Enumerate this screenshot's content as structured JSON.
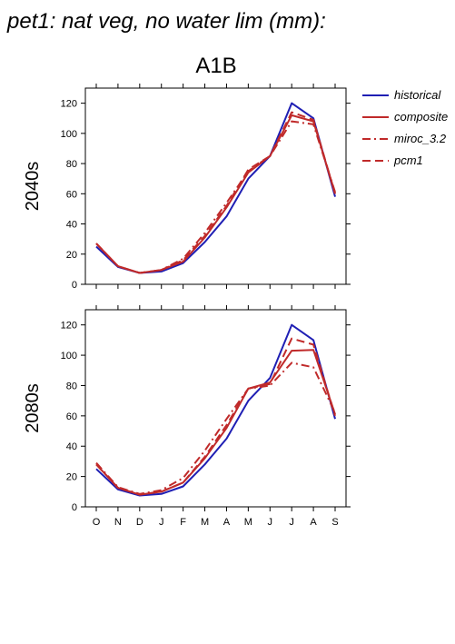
{
  "figure": {
    "title": "pet1: nat veg, no water lim (mm):",
    "subtitle": "A1B"
  },
  "legend": {
    "entries": [
      {
        "name": "historical",
        "color": "#1f1fb4",
        "dash": "solid"
      },
      {
        "name": "composite",
        "color": "#c02a2a",
        "dash": "solid"
      },
      {
        "name": "miroc_3.2",
        "color": "#c02a2a",
        "dash": "dashdot"
      },
      {
        "name": "pcm1",
        "color": "#c02a2a",
        "dash": "dash"
      }
    ]
  },
  "chart_data": [
    {
      "type": "line",
      "panel_label": "2040s",
      "categories": [
        "O",
        "N",
        "D",
        "J",
        "F",
        "M",
        "A",
        "M",
        "J",
        "J",
        "A",
        "S"
      ],
      "ylim": [
        0,
        130
      ],
      "yticks": [
        0,
        20,
        40,
        60,
        80,
        100,
        120
      ],
      "series": [
        {
          "name": "historical",
          "values": [
            25,
            11.5,
            7.5,
            8.5,
            14,
            28,
            45,
            70,
            85,
            120,
            110,
            58
          ]
        },
        {
          "name": "composite",
          "values": [
            27,
            12,
            7.5,
            9.5,
            15,
            31,
            51,
            74,
            85,
            112,
            108,
            60
          ]
        },
        {
          "name": "miroc_3.2",
          "values": [
            27,
            12,
            7.5,
            9.5,
            17,
            34,
            54,
            75,
            85,
            108,
            106,
            61
          ]
        },
        {
          "name": "pcm1",
          "values": [
            27,
            12,
            7.5,
            9.5,
            16,
            32,
            52,
            76,
            85,
            114,
            109,
            60
          ]
        }
      ]
    },
    {
      "type": "line",
      "panel_label": "2080s",
      "categories": [
        "O",
        "N",
        "D",
        "J",
        "F",
        "M",
        "A",
        "M",
        "J",
        "J",
        "A",
        "S"
      ],
      "ylim": [
        0,
        130
      ],
      "yticks": [
        0,
        20,
        40,
        60,
        80,
        100,
        120
      ],
      "series": [
        {
          "name": "historical",
          "values": [
            25,
            11.5,
            7.5,
            8.5,
            13.5,
            28,
            45,
            70,
            85,
            120,
            110,
            58
          ]
        },
        {
          "name": "composite",
          "values": [
            28,
            12.5,
            8,
            10,
            16,
            32,
            52,
            78,
            82,
            103,
            103.5,
            61
          ]
        },
        {
          "name": "miroc_3.2",
          "values": [
            29,
            13,
            8.5,
            11,
            19,
            37,
            58,
            78,
            80,
            95,
            92,
            62
          ]
        },
        {
          "name": "pcm1",
          "values": [
            28,
            12.5,
            8,
            10,
            16,
            33,
            54,
            78,
            81,
            111,
            107,
            60
          ]
        }
      ]
    }
  ]
}
